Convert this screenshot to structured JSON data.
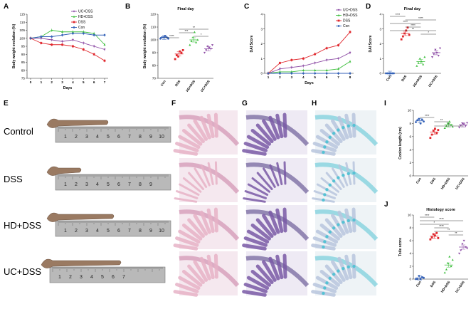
{
  "colors": {
    "uc_dss": "#8e4ea6",
    "hd_dss": "#3fbf3f",
    "dss": "#e0282e",
    "con": "#3562b8",
    "ruler": "#b9b9b9",
    "he_pink": "#e7b3c7",
    "pas_purple": "#7a5aa6",
    "ab_blue": "#56c2d4"
  },
  "panels": {
    "A": "A",
    "B": "B",
    "C": "C",
    "D": "D",
    "E": "E",
    "F": "F",
    "G": "G",
    "H": "H",
    "I": "I",
    "J": "J"
  },
  "photo_labels": [
    "Control",
    "DSS",
    "HD+DSS",
    "UC+DSS"
  ],
  "ruler_numbers": [
    "1",
    "2",
    "3",
    "4",
    "5",
    "6",
    "7",
    "8",
    "9",
    "10",
    "11"
  ],
  "ruler_lengths": [
    10,
    9,
    11,
    7
  ],
  "histology_icon_names": [
    "he-stain-icon",
    "pas-stain-icon",
    "alcian-blue-stain-icon"
  ],
  "chart_data": [
    {
      "id": "A",
      "type": "line",
      "ylabel": "Body weight evolution (%)",
      "xlabel": "Days",
      "x": [
        0,
        1,
        2,
        3,
        4,
        5,
        6,
        7
      ],
      "ylim": [
        75,
        115
      ],
      "yticks": [
        "75",
        "80",
        "85",
        "90",
        "95",
        "100",
        "105",
        "110",
        "115"
      ],
      "legend": [
        "UC+DSS",
        "HD+DSS",
        "DSS",
        "Con"
      ],
      "series": [
        {
          "name": "UC+DSS",
          "values": [
            100,
            100,
            99,
            98,
            99,
            97,
            95,
            93
          ]
        },
        {
          "name": "HD+DSS",
          "values": [
            100,
            101,
            105,
            104,
            104,
            104,
            103,
            96
          ]
        },
        {
          "name": "DSS",
          "values": [
            100,
            97,
            96,
            96,
            95,
            93,
            90,
            86
          ]
        },
        {
          "name": "Con",
          "values": [
            100,
            101,
            101,
            102,
            103,
            103,
            102,
            102
          ]
        }
      ]
    },
    {
      "id": "B",
      "type": "scatter",
      "title": "Final day",
      "ylabel": "Body weight evolution (%)",
      "ylim": [
        70,
        120
      ],
      "yticks": [
        "70",
        "80",
        "90",
        "100",
        "110",
        "120"
      ],
      "categories": [
        "Con",
        "DSS",
        "HD+DSS",
        "UC+DSS"
      ],
      "means": [
        102,
        89,
        100,
        93
      ],
      "points": [
        [
          101,
          102,
          102,
          103,
          102,
          101
        ],
        [
          85,
          88,
          87,
          91,
          90,
          92
        ],
        [
          96,
          99,
          102,
          106,
          98,
          100
        ],
        [
          90,
          92,
          95,
          94,
          93,
          96
        ]
      ],
      "significance": [
        "****",
        "**",
        "***",
        "*"
      ]
    },
    {
      "id": "C",
      "type": "line",
      "ylabel": "DAI Score",
      "xlabel": "Days",
      "x": [
        1,
        2,
        3,
        4,
        5,
        6,
        7,
        8
      ],
      "ylim": [
        0,
        4
      ],
      "yticks": [
        "0",
        "1",
        "2",
        "3",
        "4"
      ],
      "legend": [
        "UC+DSS",
        "HD+DSS",
        "DSS",
        "Con"
      ],
      "series": [
        {
          "name": "UC+DSS",
          "values": [
            0,
            0.3,
            0.4,
            0.5,
            0.7,
            0.9,
            1.0,
            1.4
          ]
        },
        {
          "name": "HD+DSS",
          "values": [
            0,
            0.1,
            0.1,
            0.2,
            0.2,
            0.2,
            0.3,
            0.8
          ]
        },
        {
          "name": "DSS",
          "values": [
            0,
            0.7,
            0.9,
            1.0,
            1.3,
            1.7,
            1.9,
            2.8
          ]
        },
        {
          "name": "Con",
          "values": [
            0,
            0,
            0,
            0,
            0,
            0,
            0,
            0
          ]
        }
      ]
    },
    {
      "id": "D",
      "type": "scatter",
      "title": "Final day",
      "ylabel": "DAI Score",
      "ylim": [
        0,
        4
      ],
      "yticks": [
        "0",
        "1",
        "2",
        "3",
        "4"
      ],
      "categories": [
        "Con",
        "DSS",
        "HD+DSS",
        "UC+DSS"
      ],
      "means": [
        0,
        2.7,
        0.8,
        1.4
      ],
      "points": [
        [
          0,
          0,
          0,
          0,
          0,
          0
        ],
        [
          2.3,
          2.5,
          2.7,
          2.9,
          3.1,
          2.6
        ],
        [
          0.5,
          0.7,
          1.0,
          0.8,
          0.6,
          1.1
        ],
        [
          1.1,
          1.3,
          1.6,
          1.4,
          1.2,
          1.7
        ]
      ],
      "significance": [
        "****",
        "****",
        "****",
        "****",
        "**",
        "*"
      ]
    },
    {
      "id": "I",
      "type": "scatter",
      "ylabel": "Coolon length (cm)",
      "ylim": [
        0,
        10
      ],
      "yticks": [
        "0",
        "2",
        "4",
        "6",
        "8",
        "10"
      ],
      "categories": [
        "Con",
        "DSS",
        "HD+DSS",
        "UC+DSS"
      ],
      "means": [
        8.4,
        6.7,
        7.8,
        7.8
      ],
      "points": [
        [
          8.2,
          8.5,
          8.7,
          8.0,
          8.6,
          8.3
        ],
        [
          5.8,
          6.3,
          6.9,
          7.2,
          6.5,
          7.0
        ],
        [
          7.3,
          7.6,
          8.0,
          8.3,
          7.8,
          7.5
        ],
        [
          7.4,
          7.7,
          8.0,
          7.9,
          7.6,
          8.1
        ]
      ],
      "significance": [
        "****",
        "**",
        "**"
      ]
    },
    {
      "id": "J",
      "type": "scatter",
      "title": "Histology score",
      "ylabel": "Toile score",
      "ylim": [
        0,
        10
      ],
      "yticks": [
        "0",
        "2",
        "4",
        "6",
        "8",
        "10"
      ],
      "categories": [
        "Con",
        "DSS",
        "HD+DSS",
        "UC+DSS"
      ],
      "means": [
        0.2,
        6.7,
        2.2,
        5.0
      ],
      "points": [
        [
          0,
          0,
          0.5,
          0,
          0.3,
          0.2
        ],
        [
          6.2,
          6.5,
          7.0,
          6.8,
          7.2,
          6.4
        ],
        [
          1.0,
          1.5,
          2.5,
          3.5,
          2.0,
          3.0
        ],
        [
          4.0,
          4.5,
          5.5,
          6.0,
          5.0,
          4.8
        ]
      ],
      "significance": [
        "****",
        "****",
        "*",
        "****",
        "**",
        "**"
      ]
    }
  ]
}
